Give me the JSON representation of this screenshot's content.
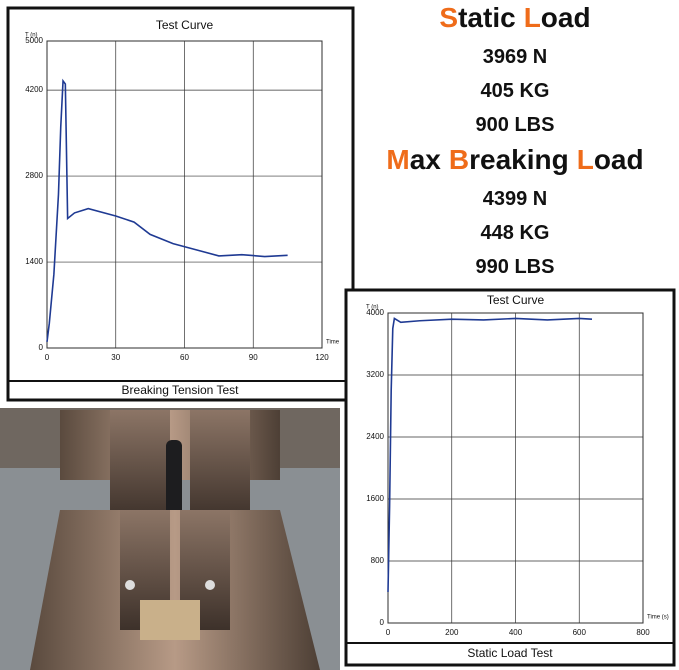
{
  "chart_data": [
    {
      "type": "line",
      "title": "Test Curve",
      "y_label": "T (n)",
      "x_label": "Time",
      "caption": "Breaking Tension Test",
      "xlim": [
        0,
        120
      ],
      "xticks": [
        0,
        30,
        60,
        90,
        120
      ],
      "ylim": [
        0,
        5000
      ],
      "yticks": [
        0,
        1400,
        2800,
        4200,
        5000
      ],
      "grid": true,
      "series": [
        {
          "color": "#1f3a93",
          "x": [
            0,
            1,
            3,
            5,
            6,
            7,
            8,
            9,
            12,
            18,
            30,
            38,
            45,
            55,
            65,
            75,
            85,
            95,
            105
          ],
          "values": [
            100,
            400,
            1200,
            2500,
            3600,
            4350,
            4300,
            2110,
            2200,
            2270,
            2150,
            2050,
            1850,
            1700,
            1600,
            1500,
            1520,
            1490,
            1510
          ]
        }
      ]
    },
    {
      "type": "line",
      "title": "Test Curve",
      "y_label": "T (n)",
      "x_label": "Time (s)",
      "caption": "Static Load Test",
      "xlim": [
        0,
        800
      ],
      "xticks": [
        0,
        200,
        400,
        600,
        800
      ],
      "ylim": [
        0,
        4000
      ],
      "yticks": [
        0,
        800,
        1600,
        2400,
        3200,
        4000
      ],
      "grid": true,
      "series": [
        {
          "color": "#1f3a93",
          "x": [
            0,
            5,
            10,
            15,
            20,
            40,
            100,
            200,
            300,
            400,
            500,
            600,
            640
          ],
          "values": [
            400,
            1500,
            3000,
            3800,
            3930,
            3880,
            3900,
            3920,
            3910,
            3930,
            3910,
            3930,
            3920
          ]
        }
      ]
    }
  ],
  "static_load": {
    "title_words": [
      "Static",
      "Load"
    ],
    "lines": [
      "3969 N",
      "405 KG",
      "900 LBS"
    ]
  },
  "max_breaking_load": {
    "title_words": [
      "Max",
      "Breaking",
      "Load"
    ],
    "lines": [
      "4399 N",
      "448 KG",
      "990 LBS"
    ]
  }
}
